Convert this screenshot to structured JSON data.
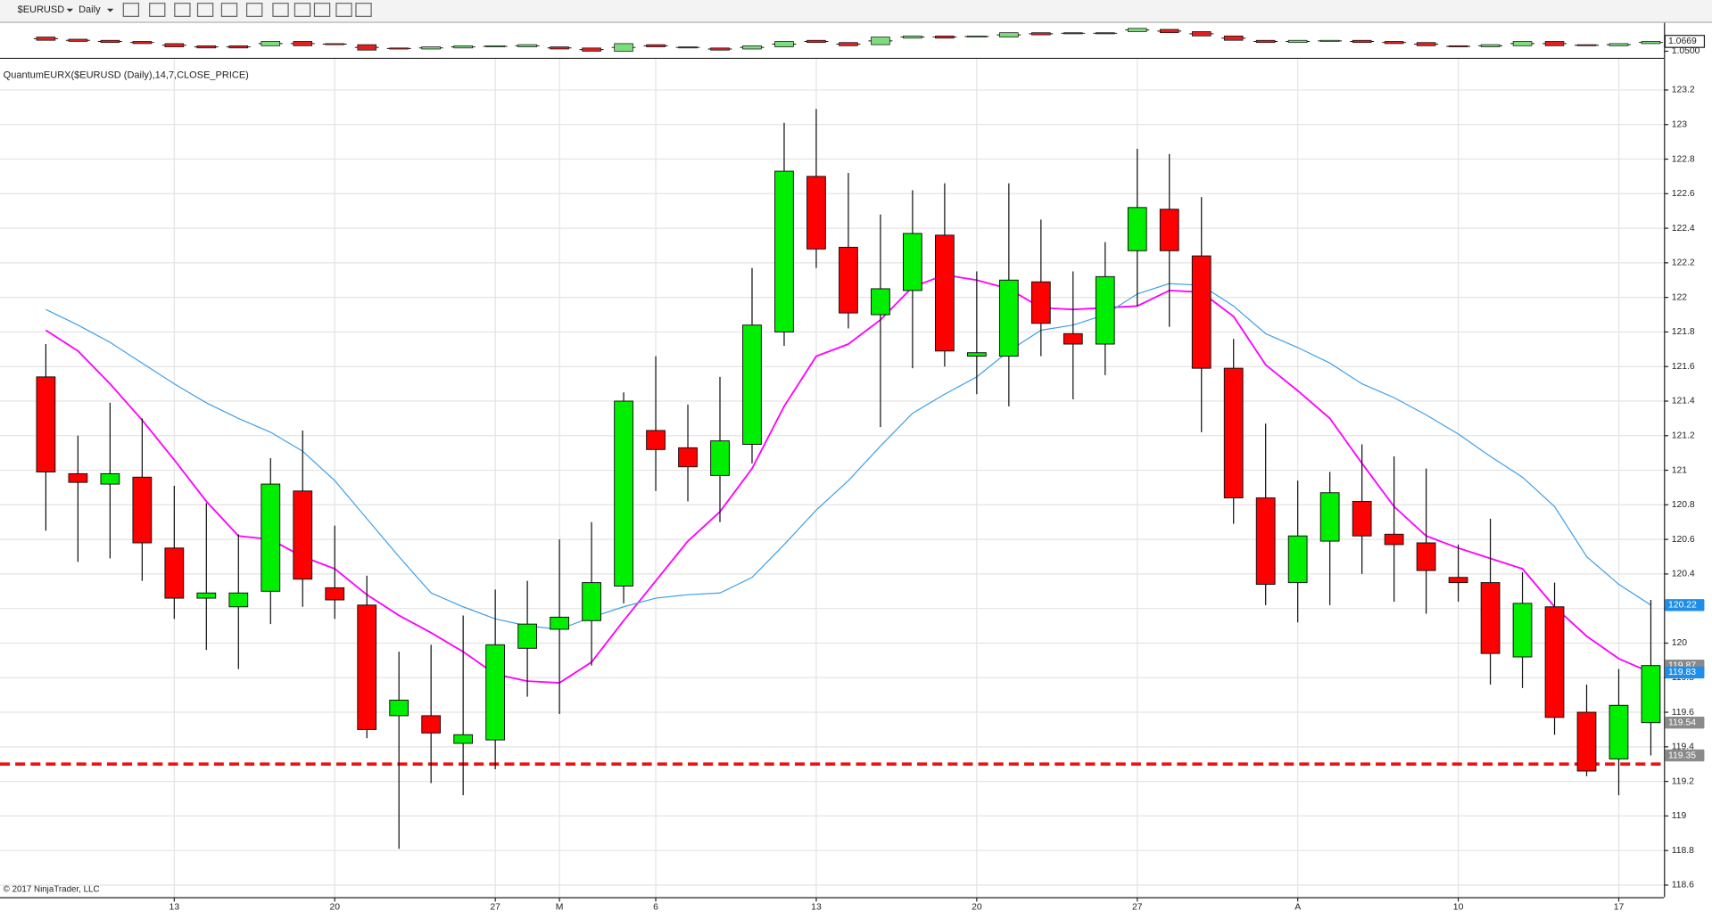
{
  "toolbar": {
    "symbol": "$EURUSD",
    "interval": "Daily"
  },
  "footer": "© 2017 NinjaTrader, LLC",
  "chart_data": [
    {
      "type": "candlestick",
      "title": "QuantumEURX($EURUSD (Daily),14,7,CLOSE_PRICE)",
      "categories": [
        null,
        null,
        null,
        null,
        "13",
        null,
        null,
        null,
        null,
        "20",
        null,
        null,
        null,
        null,
        "27",
        null,
        "M",
        null,
        null,
        "6",
        null,
        null,
        null,
        null,
        "13",
        null,
        null,
        null,
        null,
        "20",
        null,
        null,
        null,
        null,
        "27",
        null,
        null,
        null,
        null,
        "A",
        null,
        null,
        null,
        null,
        "10",
        null,
        null,
        null,
        null,
        "17",
        null
      ],
      "open": [
        121.54,
        120.98,
        120.92,
        120.96,
        120.55,
        120.26,
        120.21,
        120.3,
        120.88,
        120.32,
        120.22,
        119.58,
        119.58,
        119.42,
        119.44,
        119.97,
        120.08,
        120.13,
        120.33,
        121.23,
        121.13,
        120.97,
        121.15,
        121.8,
        122.7,
        122.29,
        121.9,
        122.04,
        122.36,
        121.66,
        121.66,
        122.09,
        121.79,
        121.73,
        122.27,
        122.51,
        122.24,
        121.59,
        120.84,
        120.35,
        120.59,
        120.82,
        120.63,
        120.58,
        120.38,
        120.35,
        119.92,
        120.21,
        119.6,
        119.33,
        119.54
      ],
      "high": [
        121.73,
        121.2,
        121.39,
        121.3,
        120.91,
        120.81,
        120.63,
        121.07,
        121.23,
        120.68,
        120.39,
        119.95,
        119.99,
        120.16,
        120.31,
        120.36,
        120.6,
        120.7,
        121.45,
        121.66,
        121.38,
        121.54,
        122.17,
        123.01,
        123.09,
        122.72,
        122.48,
        122.62,
        122.66,
        122.15,
        122.66,
        122.45,
        122.15,
        122.32,
        122.86,
        122.83,
        122.58,
        121.76,
        121.27,
        120.94,
        120.99,
        121.15,
        121.08,
        121.01,
        120.57,
        120.72,
        120.41,
        120.35,
        119.76,
        119.85,
        120.25
      ],
      "low": [
        120.65,
        120.47,
        120.49,
        120.36,
        120.14,
        119.96,
        119.85,
        120.11,
        120.21,
        120.14,
        119.45,
        118.81,
        119.19,
        119.12,
        119.27,
        119.69,
        119.59,
        119.87,
        120.23,
        120.88,
        120.82,
        120.7,
        121.04,
        121.72,
        122.17,
        121.82,
        121.25,
        121.59,
        121.6,
        121.44,
        121.37,
        121.66,
        121.41,
        121.55,
        121.95,
        121.83,
        121.22,
        120.69,
        120.22,
        120.12,
        120.22,
        120.4,
        120.24,
        120.17,
        120.24,
        119.76,
        119.74,
        119.47,
        119.23,
        119.12,
        119.35
      ],
      "close": [
        120.99,
        120.93,
        120.98,
        120.58,
        120.26,
        120.29,
        120.29,
        120.92,
        120.37,
        120.25,
        119.5,
        119.67,
        119.48,
        119.47,
        119.99,
        120.11,
        120.15,
        120.35,
        121.4,
        121.12,
        121.02,
        121.17,
        121.84,
        122.73,
        122.28,
        121.91,
        122.05,
        122.37,
        121.69,
        121.68,
        122.1,
        121.85,
        121.73,
        122.12,
        122.52,
        122.27,
        121.59,
        120.84,
        120.34,
        120.62,
        120.87,
        120.62,
        120.57,
        120.42,
        120.35,
        119.94,
        120.23,
        119.57,
        119.26,
        119.64,
        119.87
      ],
      "up_color": "#00ee00",
      "down_color": "#ff0000",
      "lines": [
        {
          "color": "#ff00ff",
          "values": [
            121.81,
            121.69,
            121.5,
            121.29,
            121.06,
            120.82,
            120.62,
            120.6,
            120.5,
            120.43,
            120.28,
            120.16,
            120.06,
            119.95,
            119.82,
            119.78,
            119.77,
            119.89,
            120.13,
            120.36,
            120.59,
            120.76,
            121.01,
            121.37,
            121.66,
            121.73,
            121.87,
            122.06,
            122.13,
            122.1,
            122.05,
            121.94,
            121.93,
            121.94,
            121.95,
            122.04,
            122.03,
            121.89,
            121.61,
            121.46,
            121.3,
            121.04,
            120.79,
            120.62,
            120.55,
            120.49,
            120.43,
            120.21,
            120.04,
            119.91,
            119.83
          ]
        },
        {
          "color": "#3fa0e8",
          "values": [
            121.93,
            121.84,
            121.74,
            121.62,
            121.5,
            121.39,
            121.3,
            121.22,
            121.11,
            120.94,
            120.72,
            120.5,
            120.29,
            120.21,
            120.14,
            120.1,
            120.08,
            120.15,
            120.21,
            120.26,
            120.28,
            120.29,
            120.38,
            120.57,
            120.77,
            120.94,
            121.14,
            121.33,
            121.44,
            121.54,
            121.69,
            121.81,
            121.84,
            121.9,
            122.02,
            122.08,
            122.07,
            121.95,
            121.79,
            121.71,
            121.62,
            121.5,
            121.42,
            121.32,
            121.21,
            121.08,
            120.96,
            120.79,
            120.5,
            120.34,
            120.22
          ]
        }
      ],
      "support_level": 119.3,
      "support_color": "#ee1111",
      "price_markers": [
        {
          "value": 120.22,
          "color": "#1e8ee8"
        },
        {
          "value": 119.87,
          "color": "#8a8a8a"
        },
        {
          "value": 119.83,
          "color": "#1e8ee8"
        },
        {
          "value": 119.54,
          "color": "#8a8a8a"
        },
        {
          "value": 119.35,
          "color": "#8a8a8a"
        }
      ],
      "ylim": [
        118.53,
        123.38
      ],
      "yticks": [
        118.6,
        118.8,
        119,
        119.2,
        119.4,
        119.6,
        119.8,
        120,
        120.2,
        120.4,
        120.6,
        120.8,
        121,
        121.2,
        121.4,
        121.6,
        121.8,
        122,
        122.2,
        122.4,
        122.6,
        122.8,
        123,
        123.2
      ],
      "grid": true
    },
    {
      "type": "candlestick-mini",
      "open": [
        1.0744,
        1.0707,
        1.0688,
        1.0669,
        1.0631,
        1.0594,
        1.0594,
        1.0594,
        1.0669,
        1.0631,
        1.0613,
        1.0556,
        1.0538,
        1.0556,
        1.0575,
        1.0575,
        1.0575,
        1.0556,
        1.05,
        1.0613,
        1.0575,
        1.0556,
        1.0538,
        1.0575,
        1.0688,
        1.065,
        1.0613,
        1.0725,
        1.0763,
        1.0744,
        1.0744,
        1.0819,
        1.0819,
        1.0819,
        1.0838,
        1.0876,
        1.0838,
        1.0763,
        1.0688,
        1.065,
        1.0669,
        1.0688,
        1.0669,
        1.065,
        1.0594,
        1.0575,
        1.0594,
        1.0669,
        1.0613,
        1.0594,
        1.0631
      ],
      "close": [
        1.0688,
        1.0669,
        1.065,
        1.0631,
        1.0575,
        1.0556,
        1.0556,
        1.0669,
        1.0594,
        1.0613,
        1.0519,
        1.0538,
        1.0575,
        1.0594,
        1.0594,
        1.0613,
        1.0538,
        1.05,
        1.0631,
        1.0575,
        1.0556,
        1.0519,
        1.0594,
        1.0669,
        1.065,
        1.0594,
        1.0744,
        1.0763,
        1.0725,
        1.0763,
        1.0819,
        1.0782,
        1.08,
        1.08,
        1.0894,
        1.0819,
        1.0763,
        1.0688,
        1.065,
        1.0688,
        1.0688,
        1.065,
        1.0631,
        1.0594,
        1.0575,
        1.0613,
        1.0669,
        1.0594,
        1.0594,
        1.0631,
        1.0669
      ],
      "up_color": "#7ddc7d",
      "down_color": "#e02020",
      "ylim": [
        1.0387,
        1.0988
      ],
      "yticks": [
        {
          "value": 1.05,
          "label": "1.0500"
        }
      ],
      "price_markers": [
        {
          "value": 1.0669,
          "label": "1.0669"
        }
      ]
    }
  ]
}
